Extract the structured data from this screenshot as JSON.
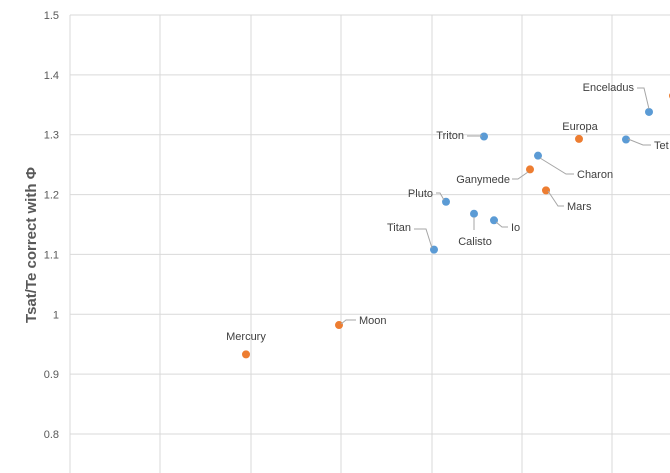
{
  "chart_data": {
    "type": "scatter",
    "ylabel": "Tsat/Te correct with Φ",
    "ylim": [
      0.8,
      1.5
    ],
    "yticks": [
      "0.8",
      "0.9",
      "1",
      "1.1",
      "1.2",
      "1.3",
      "1.4",
      "1.5"
    ],
    "grid": true,
    "colors": {
      "blue": "#5b9bd5",
      "orange": "#ed7d31"
    },
    "points": [
      {
        "label": "Mercury",
        "y": 0.933,
        "color": "orange"
      },
      {
        "label": "Moon",
        "y": 0.982,
        "color": "orange"
      },
      {
        "label": "Titan",
        "y": 1.108,
        "color": "blue"
      },
      {
        "label": "Pluto",
        "y": 1.188,
        "color": "blue"
      },
      {
        "label": "Calisto",
        "y": 1.168,
        "color": "blue"
      },
      {
        "label": "Io",
        "y": 1.157,
        "color": "blue"
      },
      {
        "label": "Triton",
        "y": 1.297,
        "color": "blue"
      },
      {
        "label": "Ganymede",
        "y": 1.242,
        "color": "orange"
      },
      {
        "label": "Charon",
        "y": 1.265,
        "color": "blue"
      },
      {
        "label": "Mars",
        "y": 1.207,
        "color": "orange"
      },
      {
        "label": "Europa",
        "y": 1.293,
        "color": "orange"
      },
      {
        "label": "Tet",
        "y": 1.292,
        "color": "blue"
      },
      {
        "label": "Enceladus",
        "y": 1.338,
        "color": "blue"
      },
      {
        "label": "",
        "y": 1.365,
        "color": "orange"
      }
    ]
  }
}
